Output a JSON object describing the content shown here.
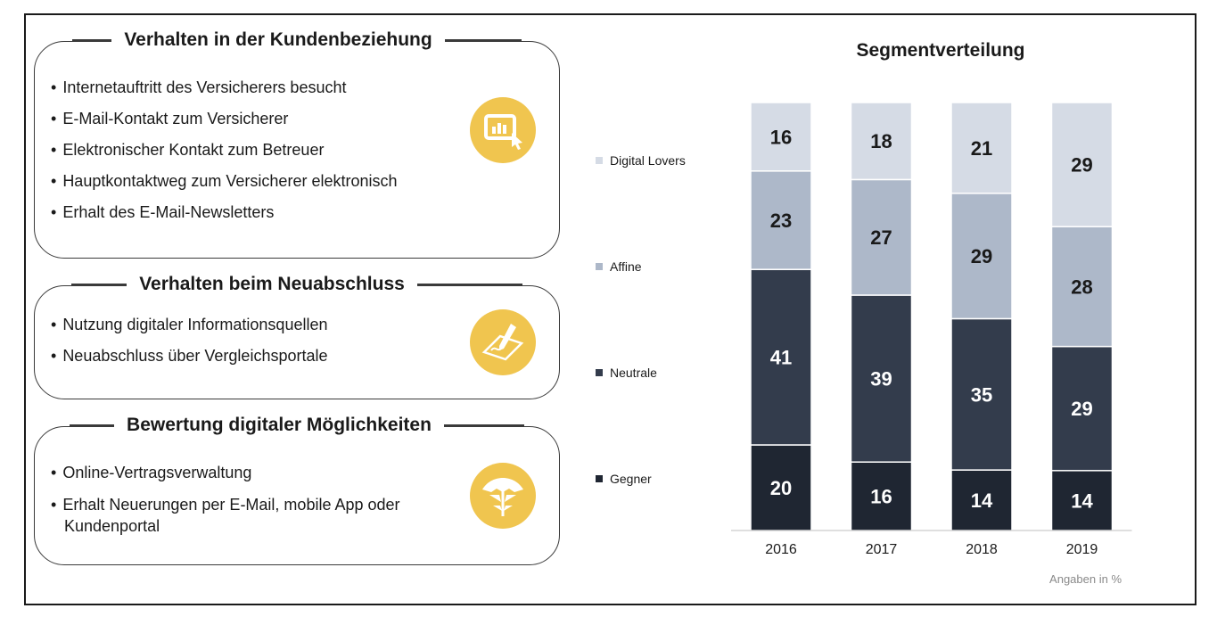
{
  "panels": [
    {
      "title": "Verhalten in der Kundenbeziehung",
      "icon": "digital-screen-touch-icon",
      "items": [
        "Internetauftritt des Versicherers besucht",
        "E-Mail-Kontakt zum Versicherer",
        "Elektronischer Kontakt zum Betreuer",
        "Hauptkontaktweg zum Versicherer elektronisch",
        "Erhalt des E-Mail-Newsletters"
      ]
    },
    {
      "title": "Verhalten beim Neuabschluss",
      "icon": "signing-pen-icon",
      "items": [
        "Nutzung digitaler Informationsquellen",
        "Neuabschluss über Vergleichsportale"
      ]
    },
    {
      "title": "Bewertung digitaler Möglichkeiten",
      "icon": "umbrella-icon",
      "items": [
        "Online-Vertragsverwaltung",
        "Erhalt Neuerungen per E-Mail, mobile App oder Kundenportal"
      ]
    }
  ],
  "accent_color": "#f0c54f",
  "chart_data": {
    "type": "bar",
    "stacked": true,
    "title": "Segmentverteilung",
    "categories": [
      "2016",
      "2017",
      "2018",
      "2019"
    ],
    "series": [
      {
        "name": "Gegner",
        "color": "#1f2632",
        "label_color": "#ffffff",
        "values": [
          20,
          16,
          14,
          14
        ]
      },
      {
        "name": "Neutrale",
        "color": "#333c4c",
        "label_color": "#ffffff",
        "values": [
          41,
          39,
          35,
          29
        ]
      },
      {
        "name": "Affine",
        "color": "#adb8c9",
        "label_color": "#1a1a1a",
        "values": [
          23,
          27,
          29,
          28
        ]
      },
      {
        "name": "Digital Lovers",
        "color": "#d5dbe5",
        "label_color": "#1a1a1a",
        "values": [
          16,
          18,
          21,
          29
        ]
      }
    ],
    "note": "Angaben in %"
  }
}
